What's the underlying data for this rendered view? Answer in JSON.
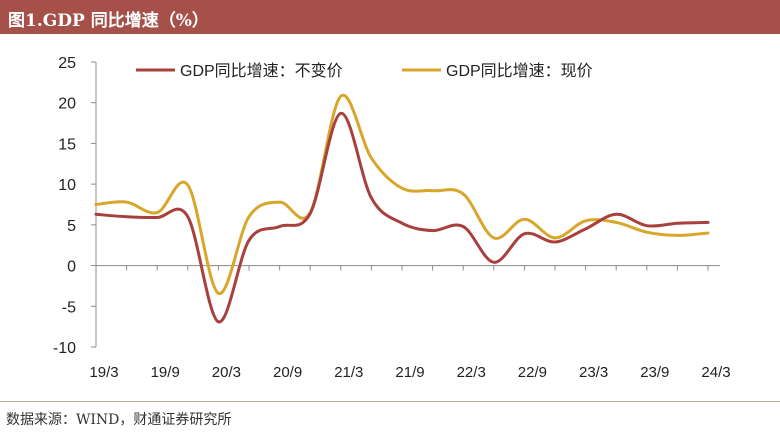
{
  "header": {
    "title": "图1.GDP 同比增速（%）"
  },
  "footer": {
    "source": "数据来源：WIND，财通证券研究所"
  },
  "colors": {
    "title_bar": "#a6504a",
    "series_constant": "#a8403d",
    "series_current": "#d7a62a"
  },
  "chart_data": {
    "type": "line",
    "title": "",
    "xlabel": "",
    "ylabel": "",
    "ylim": [
      -10,
      25
    ],
    "yticks": [
      25,
      20,
      15,
      10,
      5,
      0,
      -5,
      -10
    ],
    "xtick_labels": [
      "19/3",
      "19/9",
      "20/3",
      "20/9",
      "21/3",
      "21/9",
      "22/3",
      "22/9",
      "23/3",
      "23/9",
      "24/3"
    ],
    "x": [
      "19/3",
      "19/6",
      "19/9",
      "19/12",
      "20/3",
      "20/6",
      "20/9",
      "20/12",
      "21/3",
      "21/6",
      "21/9",
      "21/12",
      "22/3",
      "22/6",
      "22/9",
      "22/12",
      "23/3",
      "23/6",
      "23/9",
      "23/12",
      "24/3"
    ],
    "grid": false,
    "legend": "top",
    "series": [
      {
        "name": "GDP同比增速：不变价",
        "color": "#a8403d",
        "values": [
          6.3,
          6.0,
          5.9,
          6.0,
          -6.9,
          3.1,
          4.8,
          6.4,
          18.7,
          8.3,
          5.2,
          4.3,
          4.8,
          0.4,
          3.9,
          2.9,
          4.5,
          6.3,
          4.9,
          5.2,
          5.3
        ]
      },
      {
        "name": "GDP同比增速：现价",
        "color": "#d7a62a",
        "values": [
          7.5,
          7.8,
          6.5,
          9.9,
          -3.4,
          6.0,
          7.8,
          6.5,
          20.8,
          13.2,
          9.5,
          9.2,
          8.8,
          3.4,
          5.7,
          3.4,
          5.5,
          5.3,
          4.1,
          3.7,
          4.0
        ]
      }
    ]
  }
}
